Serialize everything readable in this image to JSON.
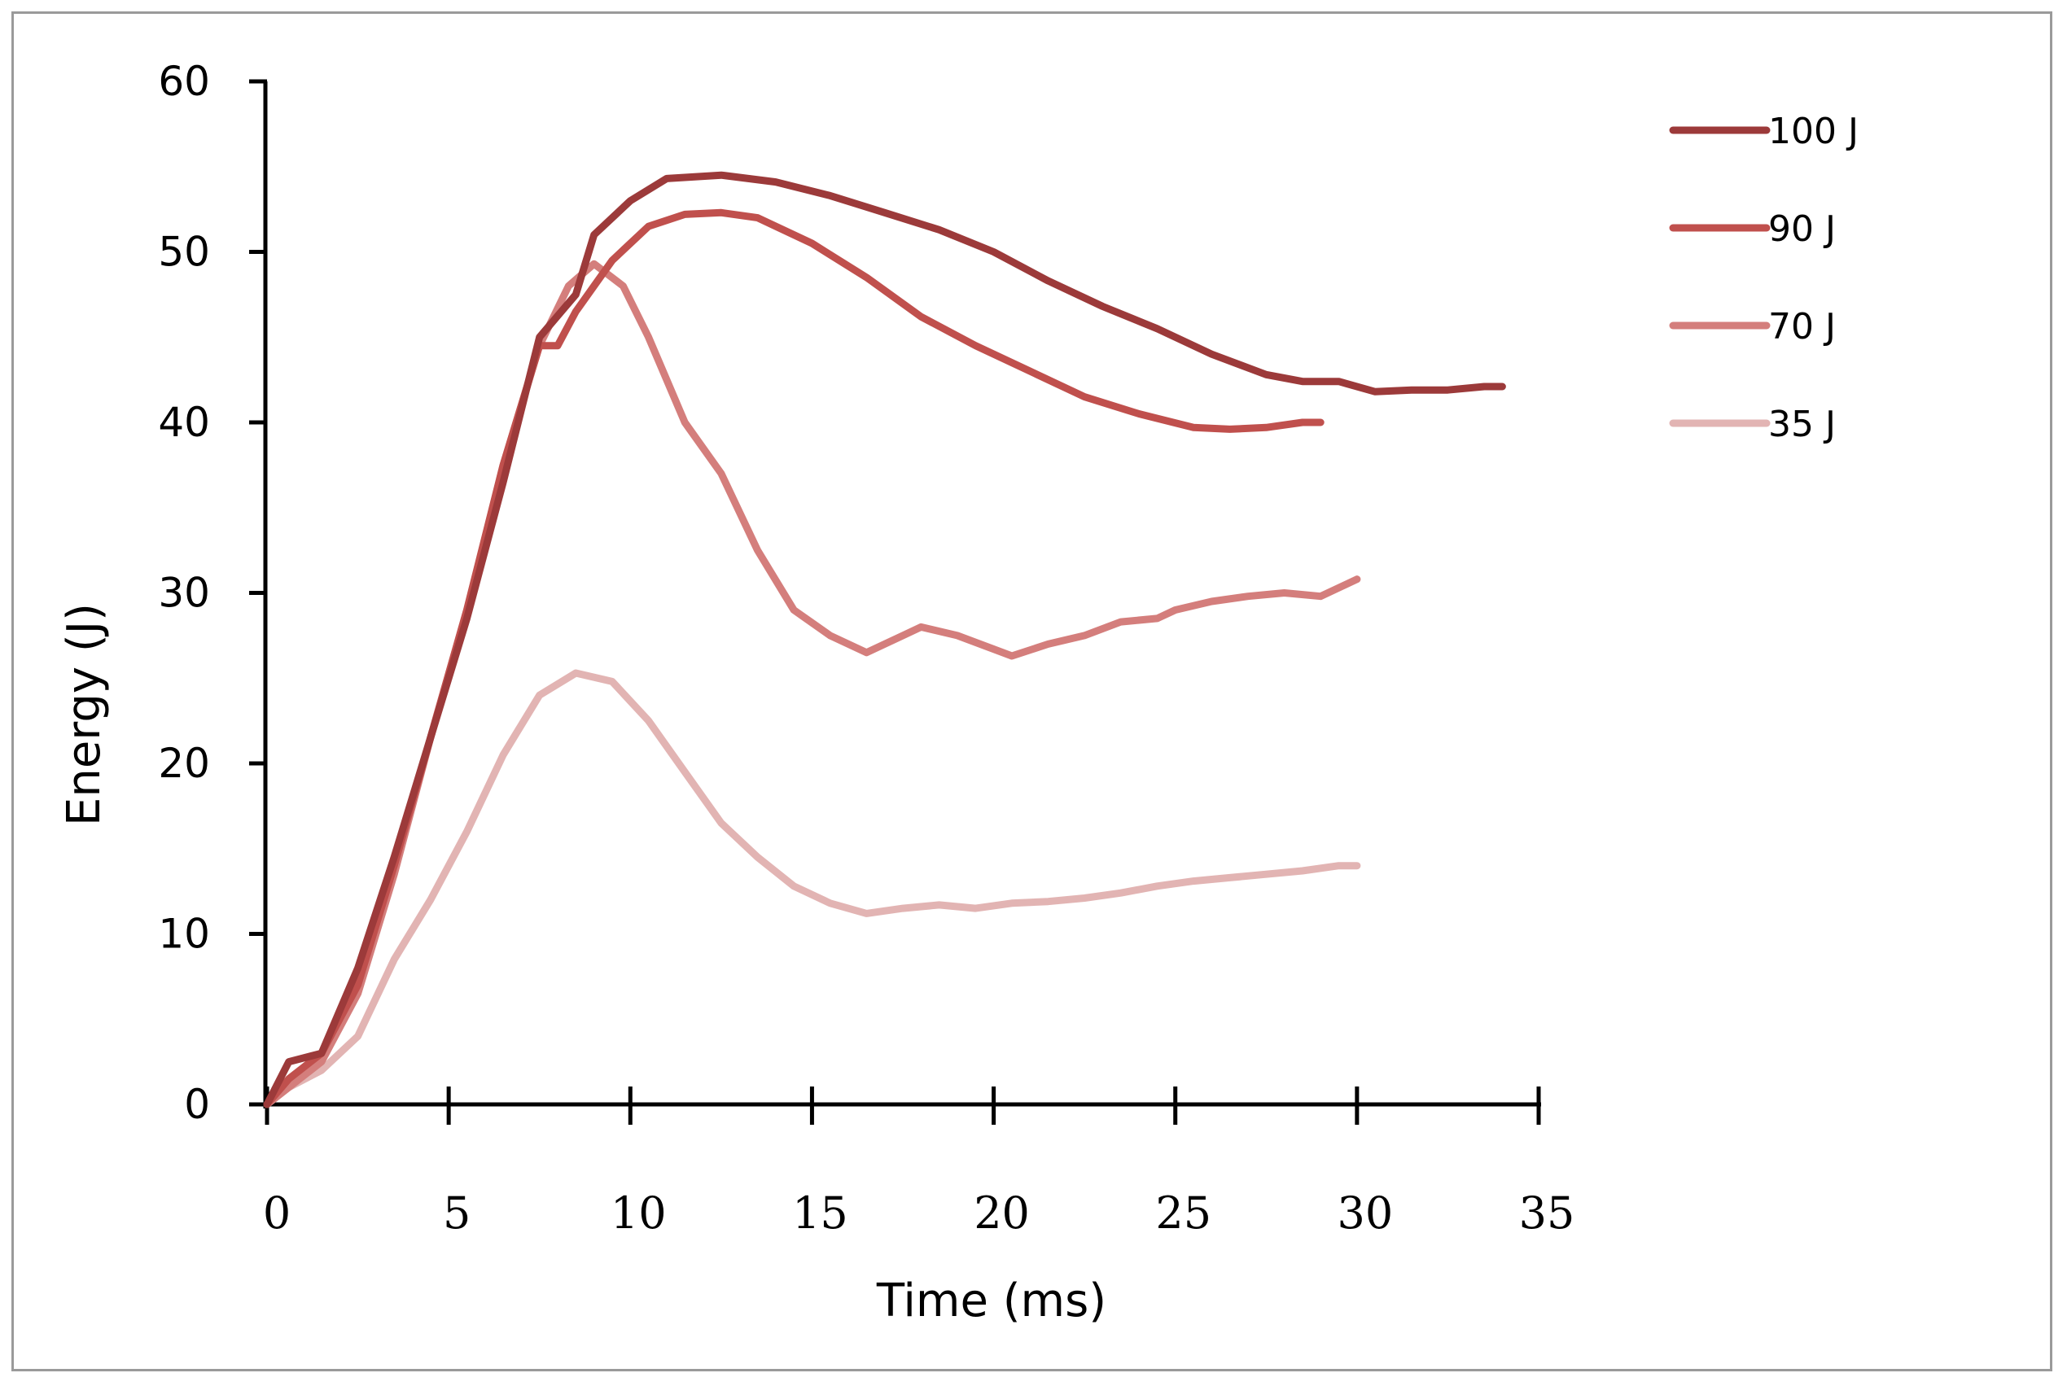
{
  "chart_data": {
    "type": "line",
    "title": "",
    "xlabel": "Time (ms)",
    "ylabel": "Energy (J)",
    "xlim": [
      0,
      35
    ],
    "ylim": [
      0,
      60
    ],
    "xticks": [
      0,
      5,
      10,
      15,
      20,
      25,
      30,
      35
    ],
    "yticks": [
      0,
      10,
      20,
      30,
      40,
      50,
      60
    ],
    "xtick_labels": [
      "0",
      "5",
      "10",
      "15",
      "20",
      "25",
      "30",
      "35"
    ],
    "ytick_labels": [
      "0",
      "10",
      "20",
      "30",
      "40",
      "50",
      "60"
    ],
    "grid": false,
    "legend_position": "top-right",
    "series": [
      {
        "name": "100 J",
        "color": "#9c3a3a",
        "x": [
          0,
          0.6,
          1.5,
          2.5,
          3.5,
          4.5,
          5.5,
          6.5,
          7.5,
          8.5,
          9.0,
          10.0,
          11.0,
          12.5,
          14.0,
          15.5,
          17.0,
          18.5,
          20.0,
          21.5,
          23.0,
          24.5,
          26.0,
          27.5,
          28.5,
          29.5,
          30.5,
          31.5,
          32.5,
          33.5,
          34.0
        ],
        "y": [
          0,
          2.5,
          3.0,
          8.0,
          14.5,
          21.5,
          28.5,
          36.5,
          45.0,
          47.5,
          51.0,
          53.0,
          54.3,
          54.5,
          54.1,
          53.3,
          52.3,
          51.3,
          50.0,
          48.3,
          46.8,
          45.5,
          44.0,
          42.8,
          42.4,
          42.4,
          41.8,
          41.9,
          41.9,
          42.1,
          42.1
        ]
      },
      {
        "name": "90 J",
        "color": "#c0504d",
        "x": [
          0,
          0.6,
          1.5,
          2.5,
          3.5,
          4.5,
          5.5,
          6.5,
          7.5,
          8.0,
          8.5,
          9.5,
          10.5,
          11.5,
          12.5,
          13.5,
          15.0,
          16.5,
          18.0,
          19.5,
          21.0,
          22.5,
          24.0,
          25.5,
          26.5,
          27.5,
          28.5,
          29.0
        ],
        "y": [
          0,
          1.5,
          3.0,
          7.0,
          14.0,
          21.5,
          29.0,
          37.5,
          44.5,
          44.5,
          46.5,
          49.5,
          51.5,
          52.2,
          52.3,
          52.0,
          50.5,
          48.5,
          46.2,
          44.5,
          43.0,
          41.5,
          40.5,
          39.7,
          39.6,
          39.7,
          40.0,
          40.0
        ]
      },
      {
        "name": "70 J",
        "color": "#d47e7c",
        "x": [
          0,
          0.6,
          1.5,
          2.5,
          3.5,
          4.5,
          5.5,
          6.5,
          7.5,
          8.3,
          9.0,
          9.8,
          10.5,
          11.5,
          12.5,
          13.5,
          14.5,
          15.5,
          16.5,
          17.5,
          18.0,
          19.0,
          20.0,
          20.5,
          21.5,
          22.5,
          23.5,
          24.5,
          25.0,
          26.0,
          27.0,
          28.0,
          29.0,
          30.0
        ],
        "y": [
          0,
          1.0,
          2.5,
          6.5,
          13.5,
          21.5,
          29.0,
          37.5,
          44.5,
          48.0,
          49.3,
          48.0,
          45.0,
          40.0,
          37.0,
          32.5,
          29.0,
          27.5,
          26.5,
          27.5,
          28.0,
          27.5,
          26.7,
          26.3,
          27.0,
          27.5,
          28.3,
          28.5,
          29.0,
          29.5,
          29.8,
          30.0,
          29.8,
          30.8
        ]
      },
      {
        "name": "35 J",
        "color": "#e2b4b3",
        "x": [
          0,
          0.6,
          1.5,
          2.5,
          3.5,
          4.5,
          5.5,
          6.5,
          7.5,
          8.5,
          9.5,
          10.5,
          11.5,
          12.5,
          13.5,
          14.5,
          15.5,
          16.5,
          17.5,
          18.5,
          19.5,
          20.5,
          21.5,
          22.5,
          23.5,
          24.5,
          25.5,
          26.5,
          27.5,
          28.5,
          29.5,
          30.0
        ],
        "y": [
          0,
          1.0,
          2.0,
          4.0,
          8.5,
          12.0,
          16.0,
          20.5,
          24.0,
          25.3,
          24.8,
          22.5,
          19.5,
          16.5,
          14.5,
          12.8,
          11.8,
          11.2,
          11.5,
          11.7,
          11.5,
          11.8,
          11.9,
          12.1,
          12.4,
          12.8,
          13.1,
          13.3,
          13.5,
          13.7,
          14.0,
          14.0
        ]
      }
    ]
  }
}
